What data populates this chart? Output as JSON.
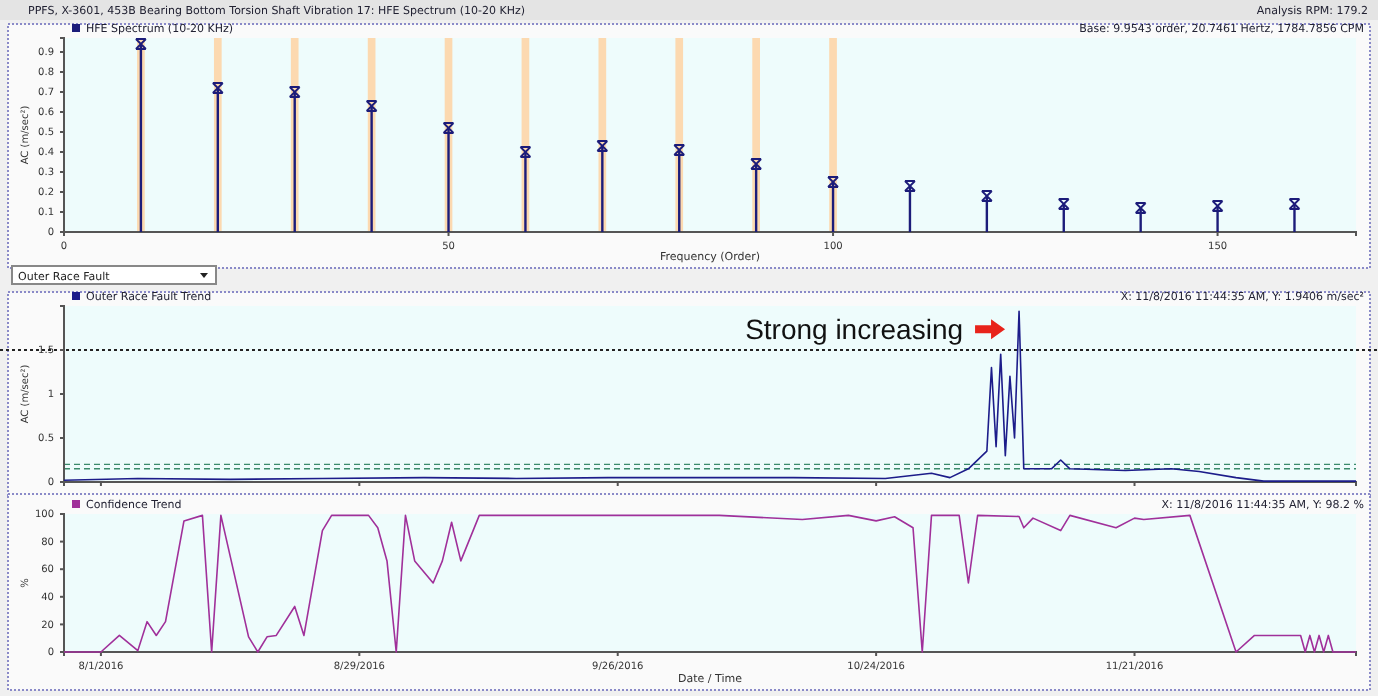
{
  "chart_data": [
    {
      "type": "lollipop",
      "title": "PPFS, X-3601, 453B Bearing Bottom Torsion Shaft Vibration 17: HFE Spectrum (10-20 KHz)",
      "xlabel": "Frequency (Order)",
      "ylabel": "AC (m/sec²)",
      "annotations": [
        "Analysis RPM: 179.2",
        "Base: 9.9543 order, 20.7461 Hertz, 1784.7856 CPM"
      ],
      "series": [
        {
          "name": "HFE Spectrum (10-20 KHz)",
          "color": "#1c1c7a",
          "x": [
            10,
            20,
            30,
            40,
            50,
            60,
            70,
            80,
            90,
            100,
            110,
            120,
            130,
            140,
            150,
            160
          ],
          "values": [
            0.94,
            0.72,
            0.7,
            0.63,
            0.52,
            0.4,
            0.43,
            0.41,
            0.34,
            0.25,
            0.23,
            0.18,
            0.14,
            0.12,
            0.13,
            0.14
          ]
        }
      ],
      "bands": [
        {
          "axis": "x",
          "from": 9.5,
          "to": 10.5,
          "color": "#fcd9b0"
        },
        {
          "axis": "x",
          "from": 19.5,
          "to": 20.5,
          "color": "#fcd9b0"
        },
        {
          "axis": "x",
          "from": 29.5,
          "to": 30.5,
          "color": "#fcd9b0"
        },
        {
          "axis": "x",
          "from": 39.5,
          "to": 40.5,
          "color": "#fcd9b0"
        },
        {
          "axis": "x",
          "from": 49.5,
          "to": 50.5,
          "color": "#fcd9b0"
        },
        {
          "axis": "x",
          "from": 59.5,
          "to": 60.5,
          "color": "#fcd9b0"
        },
        {
          "axis": "x",
          "from": 69.5,
          "to": 70.5,
          "color": "#fcd9b0"
        },
        {
          "axis": "x",
          "from": 79.5,
          "to": 80.5,
          "color": "#fcd9b0"
        },
        {
          "axis": "x",
          "from": 89.5,
          "to": 90.5,
          "color": "#fcd9b0"
        },
        {
          "axis": "x",
          "from": 99.5,
          "to": 100.5,
          "color": "#fcd9b0"
        }
      ],
      "xlim": [
        0,
        168
      ],
      "xticks": [
        0,
        50,
        100,
        150
      ],
      "ylim": [
        0,
        0.97
      ],
      "yticks": [
        0,
        0.1,
        0.2,
        0.3,
        0.4,
        0.5,
        0.6,
        0.7,
        0.8,
        0.9
      ],
      "marker": "cross",
      "legend": "top left",
      "grid": false
    },
    {
      "type": "line",
      "ylabel": "AC (m/sec²)",
      "annotations": [
        "Outer Race Fault",
        "X: 11/8/2016 11:44:35 AM, Y: 1.9406 m/sec²",
        {
          "text": "Strong increasing",
          "x": "2016-11-08T11:44",
          "y": 1.9406
        }
      ],
      "x": [
        "2016-07-28",
        "2016-08-05",
        "2016-08-15",
        "2016-08-25",
        "2016-09-05",
        "2016-09-15",
        "2016-09-25",
        "2016-10-05",
        "2016-10-15",
        "2016-10-25",
        "2016-10-30",
        "2016-11-01",
        "2016-11-03",
        "2016-11-05",
        "2016-11-05T12:00",
        "2016-11-06",
        "2016-11-06T12:00",
        "2016-11-07",
        "2016-11-07T12:00",
        "2016-11-08",
        "2016-11-08T11:44",
        "2016-11-09",
        "2016-11-12",
        "2016-11-13",
        "2016-11-14",
        "2016-11-20",
        "2016-11-25",
        "2016-11-28",
        "2016-12-02",
        "2016-12-05",
        "2016-12-15"
      ],
      "series": [
        {
          "name": "Outer Race Fault Trend",
          "color": "#1c1c8a",
          "values": [
            0.02,
            0.04,
            0.03,
            0.04,
            0.05,
            0.04,
            0.05,
            0.05,
            0.05,
            0.04,
            0.1,
            0.05,
            0.15,
            0.35,
            1.3,
            0.4,
            1.45,
            0.3,
            1.2,
            0.5,
            1.9406,
            0.15,
            0.15,
            0.25,
            0.15,
            0.13,
            0.15,
            0.12,
            0.05,
            0.01,
            0.01
          ]
        }
      ],
      "ref_lines": [
        {
          "axis": "y",
          "value": 0.15,
          "color": "#3a8a6a",
          "line_style": "dashed"
        },
        {
          "axis": "y",
          "value": 0.2,
          "color": "#3a8a6a",
          "line_style": "dashed"
        },
        {
          "axis": "y",
          "value": 1.5,
          "color": "#222222",
          "line_style": "dotted"
        }
      ],
      "xlim": [
        "2016-07-28",
        "2016-12-15"
      ],
      "xticks": [
        {
          "value": "2016-08-01",
          "label": null
        },
        {
          "value": "2016-08-29",
          "label": null
        },
        {
          "value": "2016-09-26",
          "label": null
        },
        {
          "value": "2016-10-24",
          "label": null
        },
        {
          "value": "2016-11-21",
          "label": null
        }
      ],
      "ylim": [
        0,
        2
      ],
      "yticks": [
        0,
        0.5,
        1,
        1.5
      ],
      "tick_labels": "y",
      "legend": "top left",
      "grid": false
    },
    {
      "type": "line",
      "xlabel": "Date / Time",
      "ylabel": "%",
      "annotations": [
        "X: 11/8/2016 11:44:35 AM, Y: 98.2 %"
      ],
      "x": [
        "2016-07-28",
        "2016-08-01",
        "2016-08-03",
        "2016-08-05",
        "2016-08-06",
        "2016-08-07",
        "2016-08-08",
        "2016-08-10",
        "2016-08-12",
        "2016-08-13",
        "2016-08-14",
        "2016-08-17",
        "2016-08-18",
        "2016-08-19",
        "2016-08-20",
        "2016-08-22",
        "2016-08-23",
        "2016-08-25",
        "2016-08-26",
        "2016-08-30",
        "2016-08-31",
        "2016-09-01",
        "2016-09-02",
        "2016-09-03",
        "2016-09-04",
        "2016-09-06",
        "2016-09-07",
        "2016-09-08",
        "2016-09-09",
        "2016-09-11",
        "2016-10-07",
        "2016-10-16",
        "2016-10-21",
        "2016-10-24",
        "2016-10-26",
        "2016-10-28",
        "2016-10-29",
        "2016-10-30",
        "2016-11-02",
        "2016-11-03",
        "2016-11-04",
        "2016-11-08T11:44",
        "2016-11-09",
        "2016-11-10",
        "2016-11-13",
        "2016-11-14",
        "2016-11-19",
        "2016-11-21",
        "2016-11-22",
        "2016-11-27",
        "2016-12-02",
        "2016-12-04",
        "2016-12-09",
        "2016-12-09T12:00",
        "2016-12-10",
        "2016-12-10T12:00",
        "2016-12-11",
        "2016-12-11T12:00",
        "2016-12-12",
        "2016-12-12T12:00",
        "2016-12-15"
      ],
      "series": [
        {
          "name": "Confidence Trend",
          "color": "#a0309a",
          "values": [
            0,
            0,
            12,
            1,
            22,
            12,
            22,
            95,
            99,
            0,
            99,
            11,
            0,
            11,
            12,
            33,
            12,
            88,
            99,
            99,
            90,
            66,
            0,
            99,
            66,
            50,
            66,
            94,
            66,
            99,
            99,
            96,
            99,
            95,
            98,
            90,
            0,
            99,
            99,
            50,
            99,
            98.2,
            90,
            97,
            88,
            99,
            90,
            97,
            96,
            99,
            0,
            12,
            12,
            0,
            12,
            0,
            12,
            0,
            12,
            0,
            0
          ]
        }
      ],
      "xlim": [
        "2016-07-28",
        "2016-12-15"
      ],
      "xticks": [
        {
          "value": "2016-08-01",
          "label": "8/1/2016"
        },
        {
          "value": "2016-08-29",
          "label": "8/29/2016"
        },
        {
          "value": "2016-09-26",
          "label": "9/26/2016"
        },
        {
          "value": "2016-10-24",
          "label": "10/24/2016"
        },
        {
          "value": "2016-11-21",
          "label": "11/21/2016"
        }
      ],
      "ylim": [
        0,
        100
      ],
      "yticks": [
        0,
        20,
        40,
        60,
        80,
        100
      ],
      "marker": "none",
      "legend": "top left",
      "grid": false
    }
  ]
}
